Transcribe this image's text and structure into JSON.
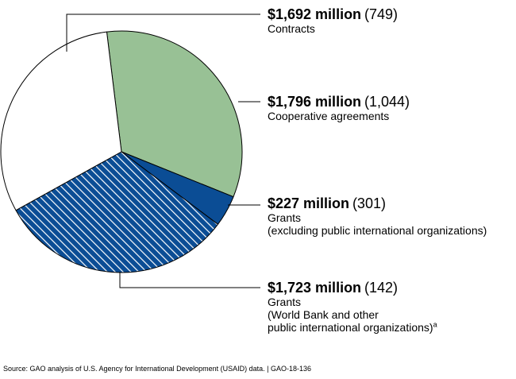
{
  "chart_data": {
    "type": "pie",
    "slices": [
      {
        "key": "contracts",
        "amount_label": "$1,692 million",
        "count_label": "(749)",
        "category": "Contracts",
        "detail_lines": [],
        "value": 1692,
        "count": 749,
        "fill": "#ffffff",
        "pattern": "none"
      },
      {
        "key": "cooperative",
        "amount_label": "$1,796 million",
        "count_label": "(1,044)",
        "category": "Cooperative agreements",
        "detail_lines": [],
        "value": 1796,
        "count": 1044,
        "fill": "#98c195",
        "pattern": "none"
      },
      {
        "key": "grants_excl",
        "amount_label": "$227 million",
        "count_label": "(301)",
        "category": "Grants",
        "detail_lines": [
          "(excluding public international organizations)"
        ],
        "value": 227,
        "count": 301,
        "fill": "#0b4d95",
        "pattern": "none"
      },
      {
        "key": "grants_wb",
        "amount_label": "$1,723 million",
        "count_label": "(142)",
        "category": "Grants",
        "detail_lines": [
          "(World Bank and other",
          "public international organizations)"
        ],
        "footnote": "a",
        "value": 1723,
        "count": 142,
        "fill": "#0b4d95",
        "pattern": "diagonal-stripes"
      }
    ],
    "stroke_color": "#000000",
    "stripe_color": "#ffffff"
  },
  "source": "Source: GAO analysis of U.S. Agency for International Development (USAID) data.  |  GAO-18-136"
}
